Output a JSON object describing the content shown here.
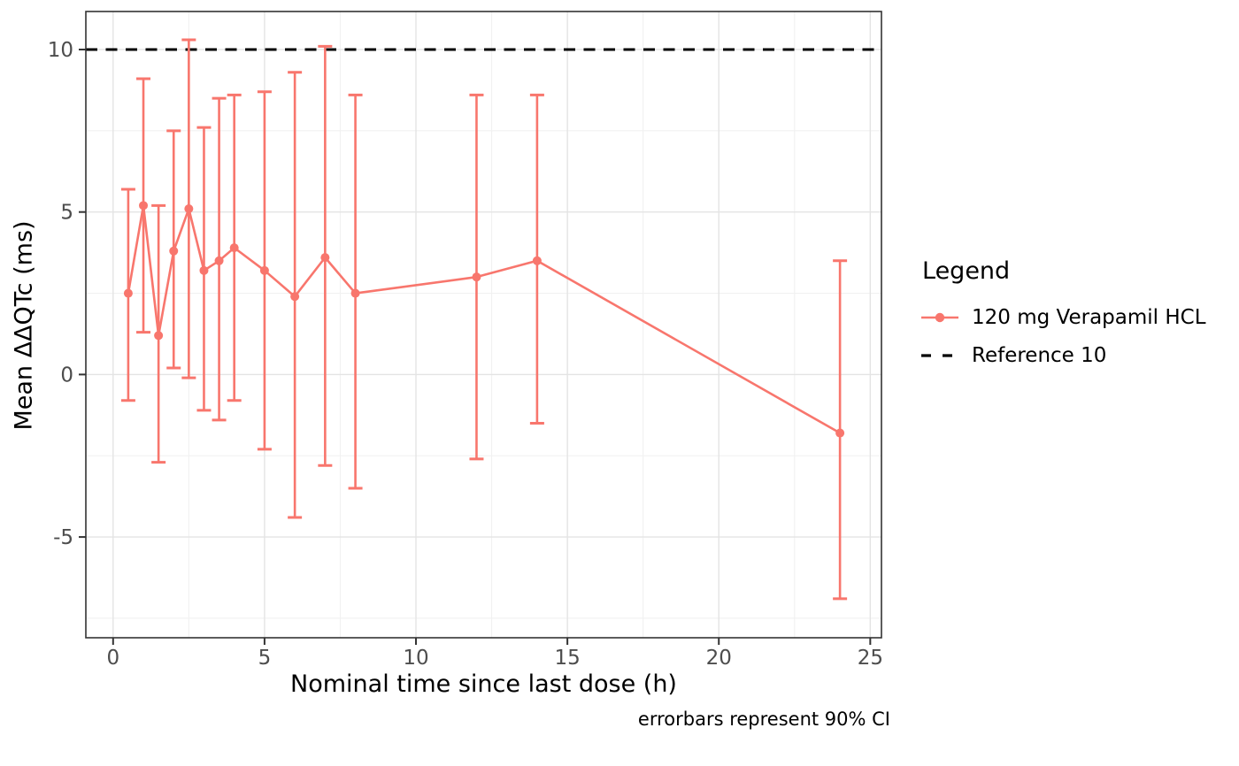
{
  "chart_data": {
    "type": "line",
    "title": "",
    "xlabel": "Nominal time since last dose (h)",
    "ylabel": "Mean ΔΔQTc (ms)",
    "caption": "errorbars represent 90% CI",
    "legend": {
      "title": "Legend",
      "position": "right"
    },
    "x_ticks": [
      0,
      5,
      10,
      15,
      20,
      25
    ],
    "y_ticks": [
      -5,
      0,
      5,
      10
    ],
    "x_minor": [
      2.5,
      7.5,
      12.5,
      17.5,
      22.5
    ],
    "y_minor": [
      -7.5,
      -2.5,
      2.5,
      7.5
    ],
    "xlim": [
      -0.9,
      25.37
    ],
    "ylim": [
      -8.1,
      11.17
    ],
    "grid": true,
    "series": [
      {
        "name": "120 mg Verapamil HCL",
        "color": "#F8766D",
        "x": [
          0.5,
          1.0,
          1.5,
          2.0,
          2.5,
          3.0,
          3.5,
          4.0,
          5.0,
          6.0,
          7.0,
          8.0,
          12.0,
          14.0,
          24.0
        ],
        "y": [
          2.5,
          5.2,
          1.2,
          3.8,
          5.1,
          3.2,
          3.5,
          3.9,
          3.2,
          2.4,
          3.6,
          2.5,
          3.0,
          3.5,
          -1.8
        ],
        "ci_low": [
          -0.8,
          1.3,
          -2.7,
          0.2,
          -0.1,
          -1.1,
          -1.4,
          -0.8,
          -2.3,
          -4.4,
          -2.8,
          -3.5,
          -2.6,
          -1.5,
          -6.9
        ],
        "ci_high": [
          5.7,
          9.1,
          5.2,
          7.5,
          10.3,
          7.6,
          8.5,
          8.6,
          8.7,
          9.3,
          10.1,
          8.6,
          8.6,
          8.6,
          3.5
        ]
      }
    ],
    "reference_line": {
      "label": "Reference 10",
      "value": 10,
      "color": "#000000",
      "style": "dashed"
    },
    "style": {
      "series_color": "#F8766D",
      "reference_color": "#000000",
      "grid_major": "#E4E4E4",
      "grid_minor": "#F1F1F1",
      "panel_border": "#333333",
      "tick_color": "#333333",
      "tick_label_color": "#4D4D4D",
      "panel_background": "#FFFFFF"
    }
  }
}
